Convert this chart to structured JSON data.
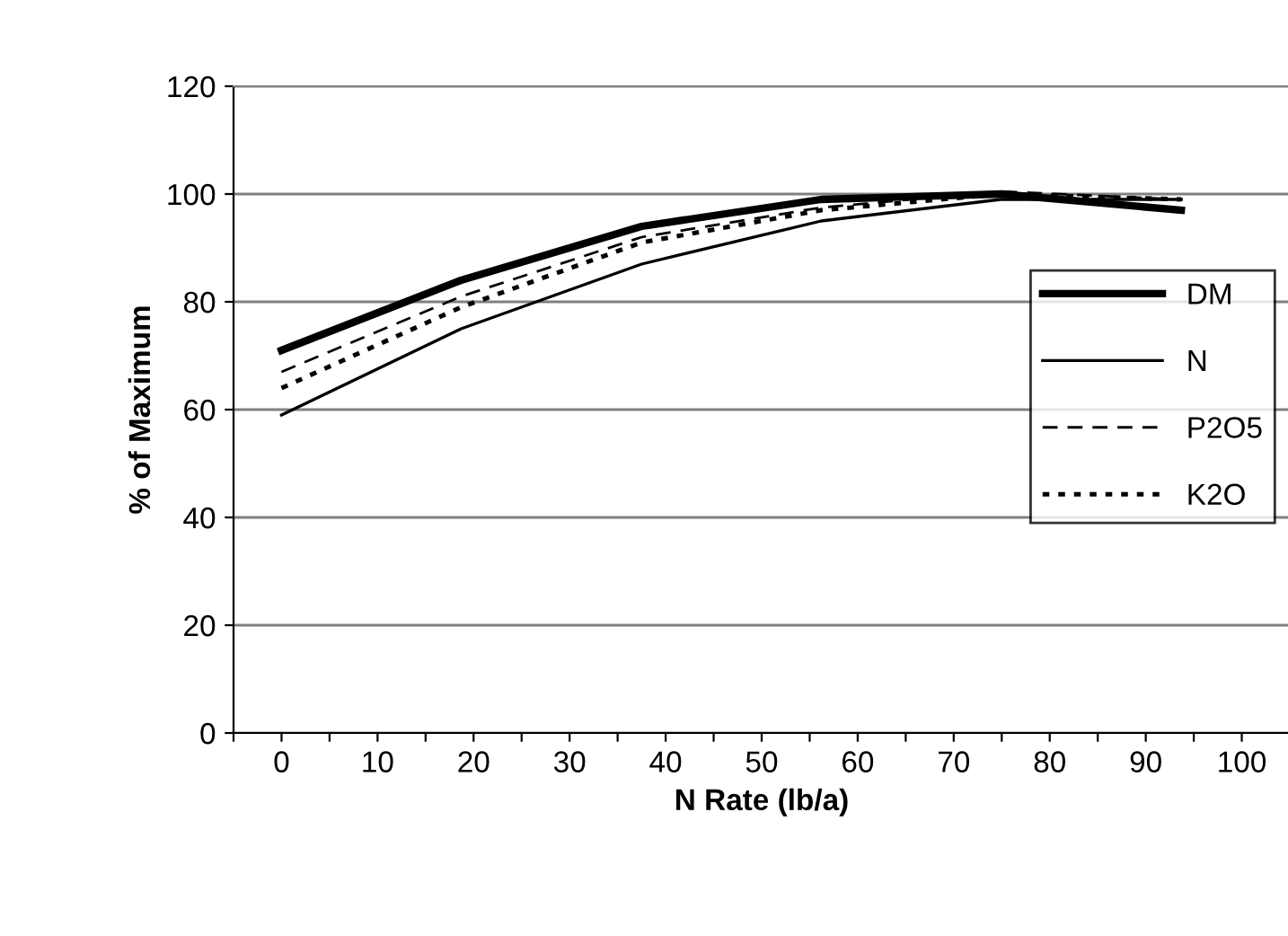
{
  "chart_data": {
    "type": "line",
    "xlabel": "N Rate (lb/a)",
    "ylabel": "% of Maximum",
    "x": [
      0,
      18.7,
      37.5,
      56.2,
      74.9,
      93.7
    ],
    "series": [
      {
        "name": "DM",
        "color": "#000000",
        "line_style": "solid",
        "values": [
          71,
          84,
          94,
          99,
          100,
          97
        ]
      },
      {
        "name": "N",
        "color": "#000000",
        "line_style": "solid",
        "values": [
          59,
          75,
          87,
          95,
          99,
          99
        ]
      },
      {
        "name": "P2O5",
        "color": "#000000",
        "line_style": "dashed",
        "values": [
          67,
          81,
          92,
          97.5,
          100.5,
          99
        ]
      },
      {
        "name": "K2O",
        "color": "#000000",
        "line_style": "dotted",
        "values": [
          64,
          79,
          91,
          97,
          100,
          99
        ]
      }
    ],
    "xlim": [
      -5,
      105
    ],
    "xticks": [
      0,
      10,
      20,
      30,
      40,
      50,
      60,
      70,
      80,
      90,
      100,
      {
        "value": -5,
        "label": null
      },
      {
        "value": 5,
        "label": null
      },
      {
        "value": 15,
        "label": null
      },
      {
        "value": 25,
        "label": null
      },
      {
        "value": 35,
        "label": null
      },
      {
        "value": 45,
        "label": null
      },
      {
        "value": 55,
        "label": null
      },
      {
        "value": 65,
        "label": null
      },
      {
        "value": 75,
        "label": null
      },
      {
        "value": 85,
        "label": null
      },
      {
        "value": 95,
        "label": null
      },
      {
        "value": 105,
        "label": null
      }
    ],
    "ylim": [
      0,
      120
    ],
    "yticks": [
      0,
      20,
      40,
      60,
      80,
      100,
      120
    ],
    "grid": "y",
    "legend": "center right",
    "marker": "none"
  }
}
